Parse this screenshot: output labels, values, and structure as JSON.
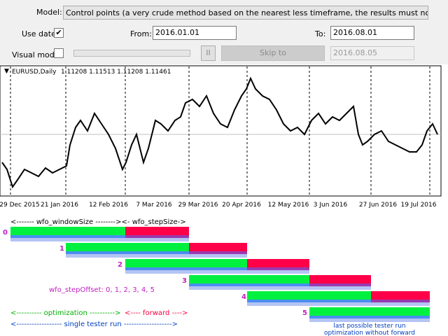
{
  "toolbar": {
    "model_label": "Model:",
    "model_value": "Control points (a very crude method based on the nearest less timeframe, the results must not be considered)",
    "use_date_label": "Use date",
    "from_label": "From:",
    "from_value": "2016.01.01",
    "to_label": "To:",
    "to_value": "2016.08.01",
    "visual_mode_label": "Visual mode",
    "skip_to_button": "Skip to",
    "skip_to_date": "2016.08.05"
  },
  "chart": {
    "symbol": "EURUSD,Daily",
    "ohlc": "1.11208 1.11513 1.11208 1.11461",
    "dates": [
      "29 Dec 2015",
      "21 Jan 2016",
      "12 Feb 2016",
      "7 Mar 2016",
      "29 Mar 2016",
      "20 Apr 2016",
      "12 May 2016",
      "3 Jun 2016",
      "27 Jun 2016",
      "19 Jul 2016"
    ]
  },
  "diagram": {
    "window_label": "<------- wfo_windowSize --------><- wfo_stepSize->",
    "runs": [
      "0",
      "1",
      "2",
      "3",
      "4",
      "5"
    ],
    "step_offset_label": "wfo_stepOffset: 0, 1, 2, 3, 4, 5",
    "optimization_label": "<---------- optimization ---------->",
    "forward_label": "<---- forward ---->",
    "single_run_label": "<------------------ single tester run ------------------->",
    "last_note": [
      "last possible tester run",
      "optimization without forward"
    ]
  }
}
